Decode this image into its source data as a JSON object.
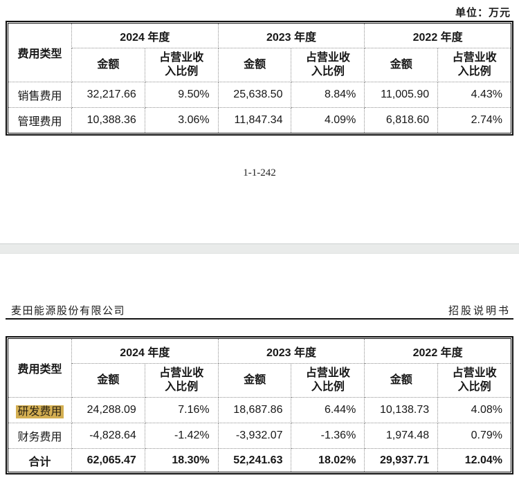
{
  "colors": {
    "highlight": "#d4af52",
    "divider_band": "#e9ebea",
    "table_border": "#0d0d0d"
  },
  "page1": {
    "unit_label": "单位：万元",
    "page_number": "1-1-242",
    "table": {
      "corner_header": "费用类型",
      "years": [
        "2024 年度",
        "2023 年度",
        "2022 年度"
      ],
      "amount_header": "金额",
      "ratio_header": "占营业收\n入比例",
      "rows": [
        {
          "label": "销售费用",
          "values": [
            "32,217.66",
            "9.50%",
            "25,638.50",
            "8.84%",
            "11,005.90",
            "4.43%"
          ]
        },
        {
          "label": "管理费用",
          "values": [
            "10,388.36",
            "3.06%",
            "11,847.34",
            "4.09%",
            "6,818.60",
            "2.74%"
          ]
        }
      ]
    }
  },
  "page2": {
    "header_left": "麦田能源股份有限公司",
    "header_right": "招股说明书",
    "table": {
      "corner_header": "费用类型",
      "years": [
        "2024 年度",
        "2023 年度",
        "2022 年度"
      ],
      "amount_header": "金额",
      "ratio_header": "占营业收\n入比例",
      "rows": [
        {
          "label": "研发费用",
          "highlighted": true,
          "values": [
            "24,288.09",
            "7.16%",
            "18,687.86",
            "6.44%",
            "10,138.73",
            "4.08%"
          ]
        },
        {
          "label": "财务费用",
          "highlighted": false,
          "values": [
            "-4,828.64",
            "-1.42%",
            "-3,932.07",
            "-1.36%",
            "1,974.48",
            "0.79%"
          ]
        },
        {
          "label": "合计",
          "total": true,
          "values": [
            "62,065.47",
            "18.30%",
            "52,241.63",
            "18.02%",
            "29,937.71",
            "12.04%"
          ]
        }
      ]
    }
  }
}
